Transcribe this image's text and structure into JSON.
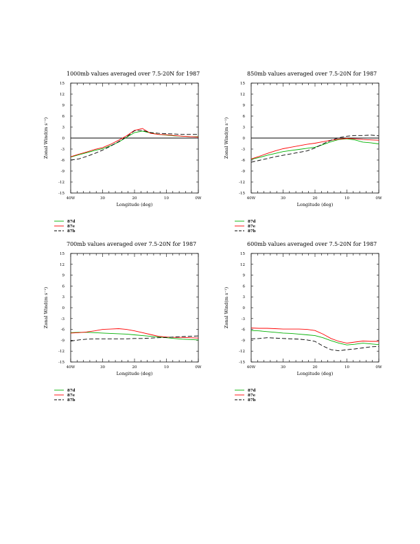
{
  "page": {
    "width": 612,
    "height": 792
  },
  "chart_data": [
    {
      "type": "line",
      "title": "1000mb values averaged over 7.5-20N for 1987",
      "xlabel": "Longitude (deg)",
      "ylabel": "Zonal Wind(m s⁻¹)",
      "xlim": [
        40,
        0
      ],
      "ylim": [
        -15,
        15
      ],
      "xticks": [
        40,
        30,
        20,
        10,
        0
      ],
      "xtick_labels": [
        "40W",
        "30",
        "20",
        "10",
        "0W"
      ],
      "yticks": [
        15,
        12,
        9,
        6,
        3,
        0,
        -3,
        -6,
        -9,
        -12,
        -15
      ],
      "grid": false,
      "legend_position": "below",
      "zero_line": true,
      "x": [
        40,
        37.5,
        35,
        32.5,
        30,
        27.5,
        25,
        22.5,
        20,
        17.5,
        15,
        12.5,
        10,
        7.5,
        5,
        2.5,
        0
      ],
      "series": [
        {
          "name": "87d",
          "color": "#00b000",
          "dash": "solid",
          "values": [
            -5.2,
            -4.6,
            -4.0,
            -3.4,
            -2.9,
            -2.1,
            -1.1,
            0.2,
            1.5,
            1.9,
            1.4,
            1.0,
            0.8,
            0.6,
            0.5,
            0.4,
            0.4
          ]
        },
        {
          "name": "87e",
          "color": "#ff0000",
          "dash": "solid",
          "values": [
            -5.1,
            -4.4,
            -3.8,
            -3.1,
            -2.6,
            -1.7,
            -0.6,
            0.6,
            2.1,
            2.6,
            1.3,
            1.0,
            0.9,
            0.7,
            0.5,
            0.4,
            0.3
          ]
        },
        {
          "name": "87b",
          "color": "#000000",
          "dash": "dashed",
          "values": [
            -6.0,
            -5.7,
            -5.0,
            -4.2,
            -3.3,
            -2.2,
            -1.0,
            0.3,
            2.0,
            2.1,
            1.5,
            1.3,
            1.2,
            1.1,
            1.0,
            1.0,
            1.0
          ]
        }
      ]
    },
    {
      "type": "line",
      "title": "850mb values averaged over 7.5-20N for 1987",
      "xlabel": "Longitude (deg)",
      "ylabel": "Zonal Wind(m s⁻¹)",
      "xlim": [
        40,
        0
      ],
      "ylim": [
        -15,
        15
      ],
      "xticks": [
        40,
        30,
        20,
        10,
        0
      ],
      "xtick_labels": [
        "40W",
        "30",
        "20",
        "10",
        "0W"
      ],
      "yticks": [
        15,
        12,
        9,
        6,
        3,
        0,
        -3,
        -6,
        -9,
        -12,
        -15
      ],
      "grid": false,
      "legend_position": "below",
      "zero_line": true,
      "x": [
        40,
        37.5,
        35,
        32.5,
        30,
        27.5,
        25,
        22.5,
        20,
        17.5,
        15,
        12.5,
        10,
        7.5,
        5,
        2.5,
        0
      ],
      "series": [
        {
          "name": "87d",
          "color": "#00b000",
          "dash": "solid",
          "values": [
            -5.8,
            -5.3,
            -4.7,
            -4.2,
            -3.7,
            -3.4,
            -3.1,
            -2.8,
            -2.5,
            -1.8,
            -1.0,
            -0.4,
            -0.2,
            -0.5,
            -1.1,
            -1.3,
            -1.6
          ]
        },
        {
          "name": "87e",
          "color": "#ff0000",
          "dash": "solid",
          "values": [
            -5.7,
            -5.0,
            -4.2,
            -3.5,
            -2.9,
            -2.5,
            -2.1,
            -1.7,
            -1.4,
            -1.0,
            -0.6,
            -0.3,
            -0.1,
            -0.2,
            -0.4,
            -0.5,
            -0.6
          ]
        },
        {
          "name": "87b",
          "color": "#000000",
          "dash": "dashed",
          "values": [
            -6.6,
            -6.1,
            -5.6,
            -5.1,
            -4.7,
            -4.3,
            -3.9,
            -3.5,
            -2.7,
            -1.6,
            -0.6,
            0.1,
            0.5,
            0.7,
            0.7,
            0.8,
            0.6
          ]
        }
      ]
    },
    {
      "type": "line",
      "title": "700mb values averaged over 7.5-20N for 1987",
      "xlabel": "Longitude (deg)",
      "ylabel": "Zonal Wind(m s⁻¹)",
      "xlim": [
        40,
        0
      ],
      "ylim": [
        -15,
        15
      ],
      "xticks": [
        40,
        30,
        20,
        10,
        0
      ],
      "xtick_labels": [
        "40W",
        "30",
        "20",
        "10",
        "0W"
      ],
      "yticks": [
        15,
        12,
        9,
        6,
        3,
        0,
        -3,
        -6,
        -9,
        -12,
        -15
      ],
      "grid": false,
      "legend_position": "below",
      "zero_line": false,
      "x": [
        40,
        37.5,
        35,
        32.5,
        30,
        27.5,
        25,
        22.5,
        20,
        17.5,
        15,
        12.5,
        10,
        7.5,
        5,
        2.5,
        0
      ],
      "series": [
        {
          "name": "87d",
          "color": "#00b000",
          "dash": "solid",
          "values": [
            -6.9,
            -6.8,
            -6.8,
            -6.9,
            -7.0,
            -7.1,
            -7.2,
            -7.3,
            -7.5,
            -7.7,
            -7.9,
            -8.1,
            -8.3,
            -8.5,
            -8.7,
            -8.8,
            -8.9
          ]
        },
        {
          "name": "87e",
          "color": "#ff0000",
          "dash": "solid",
          "values": [
            -7.0,
            -6.9,
            -6.7,
            -6.4,
            -6.0,
            -5.9,
            -5.8,
            -6.0,
            -6.4,
            -6.9,
            -7.4,
            -7.9,
            -8.1,
            -8.2,
            -8.2,
            -8.3,
            -8.4
          ]
        },
        {
          "name": "87b",
          "color": "#000000",
          "dash": "dashed",
          "values": [
            -9.2,
            -8.9,
            -8.7,
            -8.6,
            -8.6,
            -8.6,
            -8.6,
            -8.6,
            -8.5,
            -8.5,
            -8.4,
            -8.3,
            -8.2,
            -8.1,
            -8.0,
            -7.9,
            -7.8
          ]
        }
      ]
    },
    {
      "type": "line",
      "title": "600mb values averaged over 7.5-20N for 1987",
      "xlabel": "Longitude (deg)",
      "ylabel": "Zonal Wind(m s⁻¹)",
      "xlim": [
        40,
        0
      ],
      "ylim": [
        -15,
        15
      ],
      "xticks": [
        40,
        30,
        20,
        10,
        0
      ],
      "xtick_labels": [
        "40W",
        "30",
        "20",
        "10",
        "0W"
      ],
      "yticks": [
        15,
        12,
        9,
        6,
        3,
        0,
        -3,
        -6,
        -9,
        -12,
        -15
      ],
      "grid": false,
      "legend_position": "below",
      "zero_line": false,
      "x": [
        40,
        37.5,
        35,
        32.5,
        30,
        27.5,
        25,
        22.5,
        20,
        17.5,
        15,
        12.5,
        10,
        7.5,
        5,
        2.5,
        0
      ],
      "series": [
        {
          "name": "87d",
          "color": "#00b000",
          "dash": "solid",
          "values": [
            -6.3,
            -6.4,
            -6.6,
            -6.8,
            -7.0,
            -7.1,
            -7.3,
            -7.5,
            -7.7,
            -8.3,
            -9.1,
            -9.8,
            -10.3,
            -10.1,
            -9.8,
            -10.0,
            -10.2
          ]
        },
        {
          "name": "87e",
          "color": "#ff0000",
          "dash": "solid",
          "values": [
            -5.6,
            -5.7,
            -5.7,
            -5.8,
            -5.9,
            -5.9,
            -5.9,
            -6.0,
            -6.3,
            -7.3,
            -8.5,
            -9.3,
            -9.8,
            -9.5,
            -9.2,
            -9.3,
            -9.3
          ]
        },
        {
          "name": "87b",
          "color": "#000000",
          "dash": "dashed",
          "values": [
            -8.6,
            -8.5,
            -8.3,
            -8.4,
            -8.5,
            -8.6,
            -8.7,
            -8.9,
            -9.3,
            -10.6,
            -11.6,
            -11.9,
            -11.6,
            -11.4,
            -11.1,
            -10.8,
            -10.7
          ]
        }
      ]
    }
  ]
}
